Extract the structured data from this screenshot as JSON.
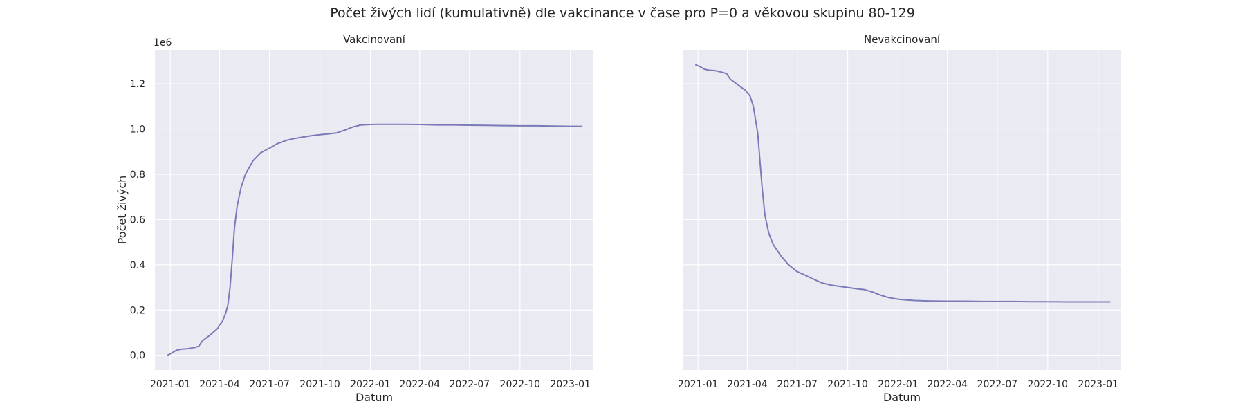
{
  "figure": {
    "title": "Počet živých lidí (kumulativně) dle vakcinance v čase pro P=0 a věkovou skupinu 80-129"
  },
  "colors": {
    "plot_bg": "#eaeaf2",
    "grid": "#ffffff",
    "line": "#7a7ab8",
    "text": "#262626"
  },
  "chart_data": [
    {
      "type": "line",
      "title": "Vakcinovaní",
      "xlabel": "Datum",
      "ylabel": "Počet živých",
      "y_scale_label": "1e6",
      "xlim": [
        "2020-12-04",
        "2023-02-12"
      ],
      "ylim": [
        -0.065,
        1.35
      ],
      "grid": true,
      "x_ticks": [
        "2021-01",
        "2021-04",
        "2021-07",
        "2021-10",
        "2022-01",
        "2022-04",
        "2022-07",
        "2022-10",
        "2023-01"
      ],
      "y_ticks": [
        "0.0",
        "0.2",
        "0.4",
        "0.6",
        "0.8",
        "1.0",
        "1.2"
      ],
      "series": [
        {
          "x": [
            "2020-12-27",
            "2021-01-05",
            "2021-01-12",
            "2021-01-20",
            "2021-02-01",
            "2021-02-15",
            "2021-02-22",
            "2021-03-01",
            "2021-03-15",
            "2021-03-29",
            "2021-04-01",
            "2021-04-06",
            "2021-04-12",
            "2021-04-16",
            "2021-04-20",
            "2021-04-24",
            "2021-04-28",
            "2021-05-03",
            "2021-05-10",
            "2021-05-18",
            "2021-06-01",
            "2021-06-15",
            "2021-07-01",
            "2021-07-15",
            "2021-08-01",
            "2021-08-15",
            "2021-09-01",
            "2021-09-15",
            "2021-10-01",
            "2021-10-15",
            "2021-11-01",
            "2021-11-15",
            "2021-12-01",
            "2021-12-15",
            "2022-01-01",
            "2022-01-15",
            "2022-02-01",
            "2022-03-01",
            "2022-04-01",
            "2022-05-01",
            "2022-06-01",
            "2022-07-01",
            "2022-08-01",
            "2022-09-01",
            "2022-10-01",
            "2022-11-01",
            "2022-12-01",
            "2023-01-01",
            "2023-01-23"
          ],
          "values": [
            0.0,
            0.012,
            0.022,
            0.027,
            0.029,
            0.035,
            0.04,
            0.065,
            0.09,
            0.12,
            0.135,
            0.15,
            0.185,
            0.22,
            0.3,
            0.42,
            0.56,
            0.66,
            0.74,
            0.8,
            0.86,
            0.895,
            0.915,
            0.935,
            0.95,
            0.958,
            0.965,
            0.97,
            0.975,
            0.978,
            0.983,
            0.995,
            1.01,
            1.018,
            1.02,
            1.021,
            1.021,
            1.021,
            1.02,
            1.018,
            1.018,
            1.017,
            1.016,
            1.015,
            1.014,
            1.014,
            1.013,
            1.012,
            1.012
          ]
        }
      ]
    },
    {
      "type": "line",
      "title": "Nevakcinovaní",
      "xlabel": "Datum",
      "ylabel": "",
      "xlim": [
        "2020-12-04",
        "2023-02-12"
      ],
      "ylim": [
        -0.065,
        1.35
      ],
      "grid": true,
      "x_ticks": [
        "2021-01",
        "2021-04",
        "2021-07",
        "2021-10",
        "2022-01",
        "2022-04",
        "2022-07",
        "2022-10",
        "2023-01"
      ],
      "series": [
        {
          "x": [
            "2020-12-27",
            "2021-01-05",
            "2021-01-12",
            "2021-01-20",
            "2021-02-01",
            "2021-02-15",
            "2021-02-22",
            "2021-03-01",
            "2021-03-15",
            "2021-03-29",
            "2021-04-01",
            "2021-04-06",
            "2021-04-12",
            "2021-04-16",
            "2021-04-20",
            "2021-04-24",
            "2021-04-28",
            "2021-05-03",
            "2021-05-10",
            "2021-05-18",
            "2021-06-01",
            "2021-06-15",
            "2021-07-01",
            "2021-07-15",
            "2021-08-01",
            "2021-08-15",
            "2021-09-01",
            "2021-09-15",
            "2021-10-01",
            "2021-10-15",
            "2021-11-01",
            "2021-11-15",
            "2021-12-01",
            "2021-12-15",
            "2022-01-01",
            "2022-01-15",
            "2022-02-01",
            "2022-03-01",
            "2022-04-01",
            "2022-05-01",
            "2022-06-01",
            "2022-07-01",
            "2022-08-01",
            "2022-09-01",
            "2022-10-01",
            "2022-11-01",
            "2022-12-01",
            "2023-01-01",
            "2023-01-23"
          ],
          "values": [
            1.285,
            1.275,
            1.265,
            1.26,
            1.258,
            1.25,
            1.245,
            1.22,
            1.195,
            1.17,
            1.16,
            1.145,
            1.1,
            1.04,
            0.98,
            0.86,
            0.74,
            0.62,
            0.54,
            0.49,
            0.44,
            0.4,
            0.37,
            0.355,
            0.335,
            0.32,
            0.31,
            0.305,
            0.3,
            0.295,
            0.29,
            0.28,
            0.265,
            0.255,
            0.248,
            0.245,
            0.242,
            0.24,
            0.239,
            0.239,
            0.238,
            0.238,
            0.238,
            0.237,
            0.237,
            0.236,
            0.236,
            0.236,
            0.236
          ]
        }
      ]
    }
  ]
}
